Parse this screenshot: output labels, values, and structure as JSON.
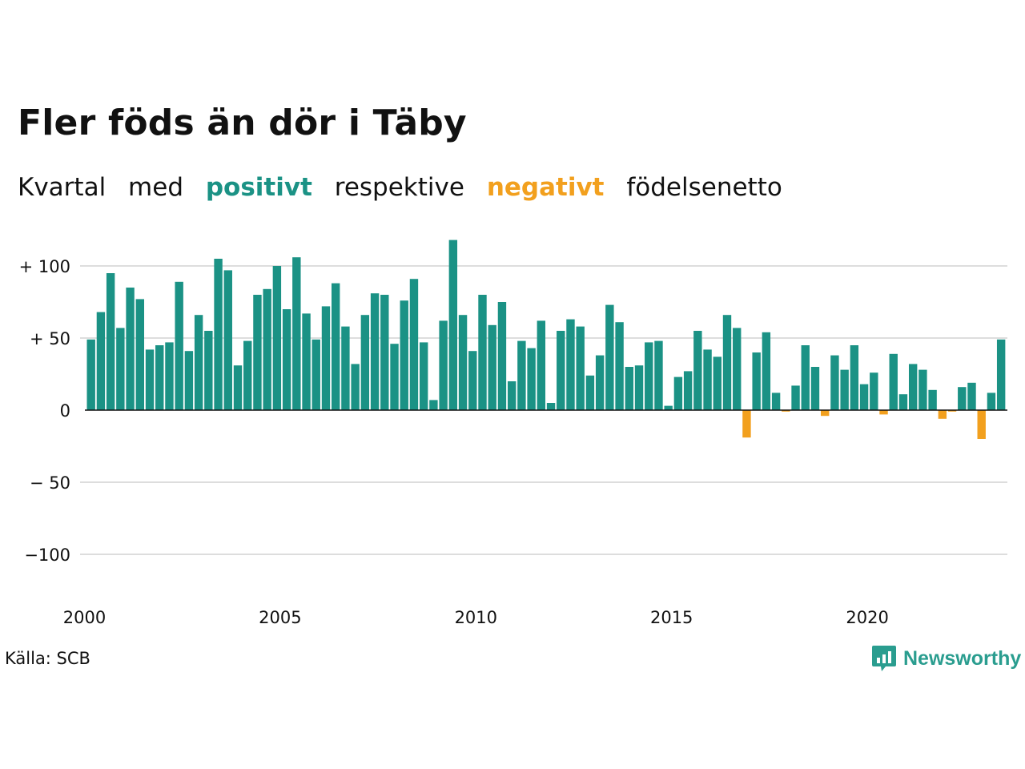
{
  "title": "Fler föds än dör i Täby",
  "subtitle": {
    "part1": "Kvartal",
    "part2": "med",
    "positive_word": "positivt",
    "part3": "respektive",
    "negative_word": "negativt",
    "part4": "födelsenetto"
  },
  "colors": {
    "positive": "#1b9285",
    "negative": "#f2a01e",
    "grid": "#dddddd",
    "baseline": "#111111",
    "brand": "#2a9d8f"
  },
  "source": "Källa: SCB",
  "brand": {
    "name": "Newsworthy",
    "icon": "bar-chart-speech-bubble-icon"
  },
  "chart_data": {
    "type": "bar",
    "title": "Fler föds än dör i Täby",
    "xlabel": "",
    "ylabel": "",
    "ylim": [
      -120,
      120
    ],
    "grid": true,
    "yticks": [
      {
        "value": 100,
        "label": "+ 100"
      },
      {
        "value": 50,
        "label": "+  50"
      },
      {
        "value": 0,
        "label": "0"
      },
      {
        "value": -50,
        "label": "− 50"
      },
      {
        "value": -100,
        "label": "−100"
      }
    ],
    "xticks": [
      {
        "year": 2000,
        "label": "2000"
      },
      {
        "year": 2005,
        "label": "2005"
      },
      {
        "year": 2010,
        "label": "2010"
      },
      {
        "year": 2015,
        "label": "2015"
      },
      {
        "year": 2020,
        "label": "2020"
      }
    ],
    "start_year": 2000,
    "start_quarter": 1,
    "values": [
      49,
      68,
      95,
      57,
      85,
      77,
      42,
      45,
      47,
      89,
      41,
      66,
      55,
      105,
      97,
      31,
      48,
      80,
      84,
      100,
      70,
      106,
      67,
      49,
      72,
      88,
      58,
      32,
      66,
      81,
      80,
      46,
      76,
      91,
      47,
      7,
      62,
      118,
      66,
      41,
      80,
      59,
      75,
      20,
      48,
      43,
      62,
      5,
      55,
      63,
      58,
      24,
      38,
      73,
      61,
      30,
      31,
      47,
      48,
      3,
      23,
      27,
      55,
      42,
      37,
      66,
      57,
      -19,
      40,
      54,
      12,
      -1,
      17,
      45,
      30,
      -4,
      38,
      28,
      45,
      18,
      26,
      -3,
      39,
      11,
      32,
      28,
      14,
      -6,
      -1,
      16,
      19,
      -20,
      12,
      49
    ]
  }
}
